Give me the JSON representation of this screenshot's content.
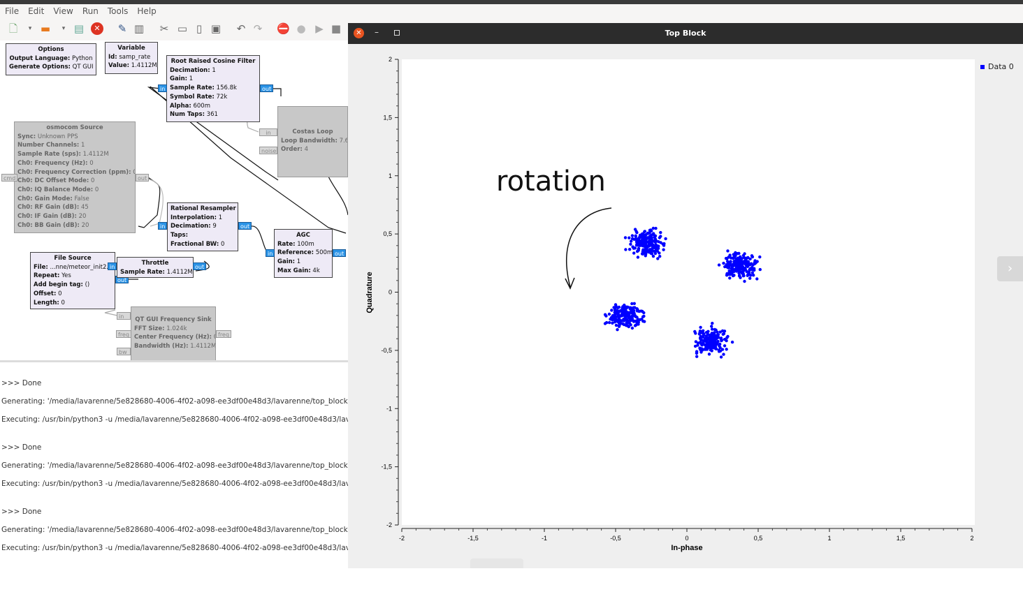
{
  "menu": [
    "File",
    "Edit",
    "View",
    "Run",
    "Tools",
    "Help"
  ],
  "toolbar_icons": [
    "new-file-icon",
    "open-folder-icon",
    "save-icon",
    "close-file-icon",
    "edit-icon",
    "print-icon",
    "cut-icon",
    "copy-icon",
    "paste-icon",
    "delete-icon",
    "undo-icon",
    "redo-icon",
    "stop-icon",
    "bulb-icon",
    "run-icon",
    "kill-icon"
  ],
  "blocks": {
    "options": {
      "title": "Options",
      "l1k": "Output Language:",
      "l1v": "Python",
      "l2k": "Generate Options:",
      "l2v": "QT GUI"
    },
    "variable": {
      "title": "Variable",
      "l1k": "Id:",
      "l1v": "samp_rate",
      "l2k": "Value:",
      "l2v": "1.4112M"
    },
    "rrc": {
      "title": "Root Raised Cosine Filter",
      "p": [
        [
          "Decimation:",
          "1"
        ],
        [
          "Gain:",
          "1"
        ],
        [
          "Sample Rate:",
          "156.8k"
        ],
        [
          "Symbol Rate:",
          "72k"
        ],
        [
          "Alpha:",
          "600m"
        ],
        [
          "Num Taps:",
          "361"
        ]
      ]
    },
    "osmocom": {
      "title": "osmocom Source",
      "p": [
        [
          "Sync:",
          "Unknown PPS"
        ],
        [
          "Number Channels:",
          "1"
        ],
        [
          "Sample Rate (sps):",
          "1.4112M"
        ],
        [
          "Ch0: Frequency (Hz):",
          "0"
        ],
        [
          "Ch0: Frequency Correction (ppm):",
          "0"
        ],
        [
          "Ch0: DC Offset Mode:",
          "0"
        ],
        [
          "Ch0: IQ Balance Mode:",
          "0"
        ],
        [
          "Ch0: Gain Mode:",
          "False"
        ],
        [
          "Ch0: RF Gain (dB):",
          "45"
        ],
        [
          "Ch0: IF Gain (dB):",
          "20"
        ],
        [
          "Ch0: BB Gain (dB):",
          "20"
        ]
      ]
    },
    "costas": {
      "title": "Costas Loop",
      "p": [
        [
          "Loop Bandwidth:",
          "7.6"
        ],
        [
          "Order:",
          "4"
        ]
      ]
    },
    "resampler": {
      "title": "Rational Resampler",
      "p": [
        [
          "Interpolation:",
          "1"
        ],
        [
          "Decimation:",
          "9"
        ],
        [
          "Taps:",
          ""
        ],
        [
          "Fractional BW:",
          "0"
        ]
      ]
    },
    "agc": {
      "title": "AGC",
      "p": [
        [
          "Rate:",
          "100m"
        ],
        [
          "Reference:",
          "500m"
        ],
        [
          "Gain:",
          "1"
        ],
        [
          "Max Gain:",
          "4k"
        ]
      ]
    },
    "filesource": {
      "title": "File Source",
      "p": [
        [
          "File:",
          "...nne/meteor_init2.bi"
        ],
        [
          "Repeat:",
          "Yes"
        ],
        [
          "Add begin tag:",
          "()"
        ],
        [
          "Offset:",
          "0"
        ],
        [
          "Length:",
          "0"
        ]
      ]
    },
    "throttle": {
      "title": "Throttle",
      "p": [
        [
          "Sample Rate:",
          "1.4112M"
        ]
      ]
    },
    "freqsink": {
      "title": "QT GUI Frequency Sink",
      "p": [
        [
          "FFT Size:",
          "1.024k"
        ],
        [
          "Center Frequency (Hz):",
          "0"
        ],
        [
          "Bandwidth (Hz):",
          "1.4112M"
        ]
      ]
    }
  },
  "ports": {
    "in": "in",
    "out": "out",
    "noise": "noise",
    "freq": "freq",
    "bw": "bw",
    "cmd": "cmd"
  },
  "console": [
    ">>> Done",
    "Generating: '/media/lavarenne/5e828680-4006-4f02-a098-ee3df00e48d3/lavarenne/top_block",
    "Executing: /usr/bin/python3 -u /media/lavarenne/5e828680-4006-4f02-a098-ee3df00e48d3/lav",
    ">>> Done",
    "Generating: '/media/lavarenne/5e828680-4006-4f02-a098-ee3df00e48d3/lavarenne/top_block",
    "Executing: /usr/bin/python3 -u /media/lavarenne/5e828680-4006-4f02-a098-ee3df00e48d3/lav",
    ">>> Done",
    "Generating: '/media/lavarenne/5e828680-4006-4f02-a098-ee3df00e48d3/lavarenne/top_block",
    "Executing: /usr/bin/python3 -u /media/lavarenne/5e828680-4006-4f02-a098-ee3df00e48d3/lav"
  ],
  "window": {
    "title": "Top Block",
    "close_glyph": "✕",
    "min_glyph": "–"
  },
  "annotation": "rotation",
  "side_chevron": "›",
  "chart_data": {
    "type": "scatter",
    "xlabel": "In-phase",
    "ylabel": "Quadrature",
    "xlim": [
      -2,
      2
    ],
    "ylim": [
      -2,
      2
    ],
    "xticks": [
      "-2",
      "-1,5",
      "-1",
      "-0,5",
      "0",
      "0,5",
      "1",
      "1,5",
      "2"
    ],
    "yticks": [
      "2",
      "1,5",
      "1",
      "0,5",
      "0",
      "-0,5",
      "-1",
      "-1,5",
      "-2"
    ],
    "legend": "top-right",
    "grid": false,
    "color": "#0000ff",
    "series": [
      {
        "name": "Data 0",
        "clusters": [
          {
            "cx": -0.28,
            "cy": 0.42,
            "n": 190
          },
          {
            "cx": 0.37,
            "cy": 0.22,
            "n": 190
          },
          {
            "cx": -0.43,
            "cy": -0.2,
            "n": 190
          },
          {
            "cx": 0.17,
            "cy": -0.42,
            "n": 190
          }
        ]
      }
    ]
  }
}
